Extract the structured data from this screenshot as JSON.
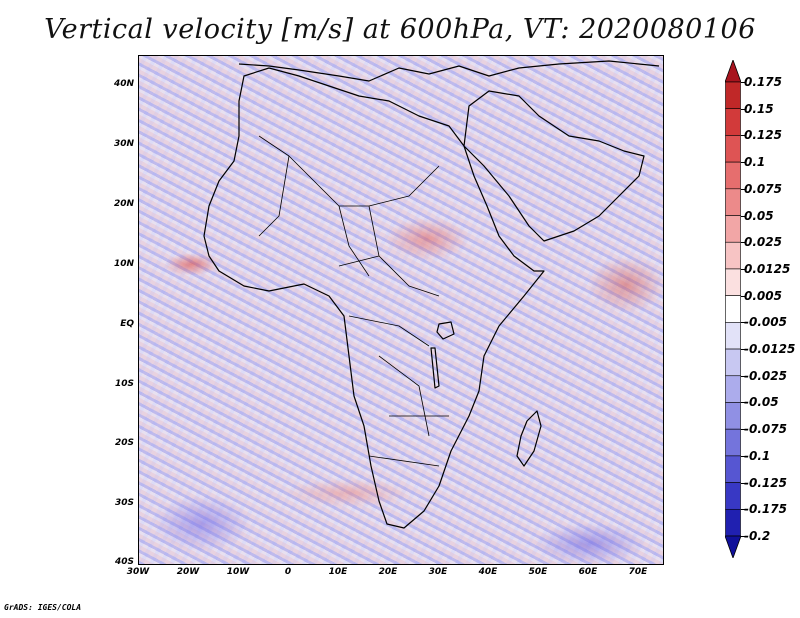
{
  "title": "Vertical velocity [m/s] at 600hPa, VT: 2020080106",
  "credit": "GrADS: IGES/COLA",
  "map": {
    "field": "Vertical velocity",
    "units": "m/s",
    "level": "600hPa",
    "valid_time": "2020080106",
    "region": "Africa",
    "lon_range": [
      -30,
      75
    ],
    "lat_range": [
      -40,
      45
    ],
    "lat_labels": [
      "40N",
      "30N",
      "20N",
      "10N",
      "EQ",
      "10S",
      "20S",
      "30S",
      "40S"
    ],
    "lon_labels": [
      "30W",
      "20W",
      "10W",
      "0",
      "10E",
      "20E",
      "30E",
      "40E",
      "50E",
      "60E",
      "70E"
    ]
  },
  "colorbar": {
    "labels": [
      "0.175",
      "0.15",
      "0.125",
      "0.1",
      "0.075",
      "0.05",
      "0.025",
      "0.0125",
      "0.005",
      "-0.005",
      "-0.0125",
      "-0.025",
      "-0.05",
      "-0.075",
      "-0.1",
      "-0.125",
      "-0.175",
      "-0.2"
    ],
    "colors": [
      "#a8141e",
      "#c02828",
      "#d23a3a",
      "#de5454",
      "#e66e6e",
      "#ec8a8a",
      "#f2a6a6",
      "#f7c4c4",
      "#fbe0e0",
      "#ffffff",
      "#e2e2f8",
      "#c8c8f2",
      "#acacec",
      "#9090e4",
      "#7474dc",
      "#5656d2",
      "#3838c4",
      "#2020b0",
      "#10109a"
    ]
  }
}
